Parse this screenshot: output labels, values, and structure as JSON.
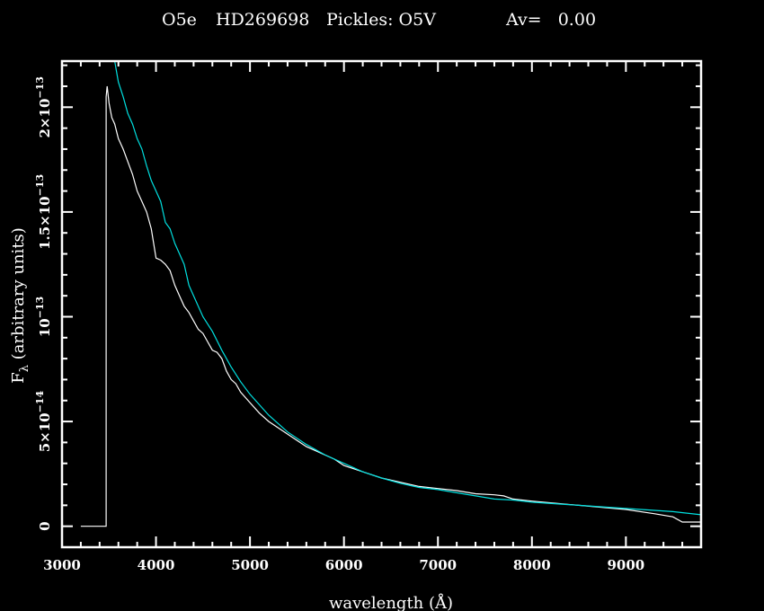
{
  "chart_data": {
    "type": "line",
    "title_parts": [
      {
        "key": "spectral_type",
        "text": "O5e"
      },
      {
        "key": "star",
        "text": "HD269698"
      },
      {
        "key": "pickles",
        "text": "Pickles: O5V"
      },
      {
        "key": "av",
        "text": "Av=   0.00"
      }
    ],
    "xlabel": "wavelength (Å)",
    "ylabel": {
      "symbol": "F",
      "subscript": "λ",
      "rest": " (arbitrary units)"
    },
    "xlim": [
      3000,
      9800
    ],
    "ylim": [
      -1e-14,
      2.22e-13
    ],
    "x_ticks": [
      {
        "value": 3000,
        "label": "3000"
      },
      {
        "value": 4000,
        "label": "4000"
      },
      {
        "value": 5000,
        "label": "5000"
      },
      {
        "value": 6000,
        "label": "6000"
      },
      {
        "value": 7000,
        "label": "7000"
      },
      {
        "value": 8000,
        "label": "8000"
      },
      {
        "value": 9000,
        "label": "9000"
      }
    ],
    "x_minor_step": 200,
    "y_ticks": [
      {
        "value": 0,
        "mant": "0",
        "exp": ""
      },
      {
        "value": 5e-14,
        "mant": "5×10",
        "exp": "−14"
      },
      {
        "value": 1e-13,
        "mant": "10",
        "exp": "−13"
      },
      {
        "value": 1.5e-13,
        "mant": "1.5×10",
        "exp": "−13"
      },
      {
        "value": 2e-13,
        "mant": "2×10",
        "exp": "−13"
      }
    ],
    "y_minor_step": 1e-14,
    "grid": false,
    "series": [
      {
        "color": "#ffffff",
        "x": [
          3200,
          3470,
          3470,
          3480,
          3500,
          3530,
          3560,
          3600,
          3650,
          3700,
          3750,
          3800,
          3850,
          3900,
          3950,
          4000,
          4050,
          4100,
          4150,
          4200,
          4250,
          4300,
          4350,
          4400,
          4450,
          4500,
          4550,
          4600,
          4650,
          4700,
          4750,
          4800,
          4850,
          4900,
          5000,
          5100,
          5200,
          5300,
          5400,
          5500,
          5600,
          5700,
          5800,
          5900,
          6000,
          6200,
          6400,
          6600,
          6800,
          7000,
          7200,
          7400,
          7600,
          7700,
          7800,
          8000,
          8500,
          9000,
          9300,
          9500,
          9600,
          9800
        ],
        "y": [
          0,
          0,
          2.05e-13,
          2.1e-13,
          2.02e-13,
          1.95e-13,
          1.92e-13,
          1.85e-13,
          1.8e-13,
          1.74e-13,
          1.68e-13,
          1.6e-13,
          1.55e-13,
          1.5e-13,
          1.42e-13,
          1.28e-13,
          1.27e-13,
          1.25e-13,
          1.22e-13,
          1.15e-13,
          1.1e-13,
          1.05e-13,
          1.02e-13,
          9.8e-14,
          9.4e-14,
          9.2e-14,
          8.8e-14,
          8.4e-14,
          8.3e-14,
          8e-14,
          7.4e-14,
          7e-14,
          6.8e-14,
          6.4e-14,
          5.9e-14,
          5.4e-14,
          5e-14,
          4.7e-14,
          4.4e-14,
          4.1e-14,
          3.8e-14,
          3.6e-14,
          3.4e-14,
          3.2e-14,
          2.9e-14,
          2.6e-14,
          2.3e-14,
          2.1e-14,
          1.9e-14,
          1.8e-14,
          1.7e-14,
          1.55e-14,
          1.5e-14,
          1.45e-14,
          1.3e-14,
          1.2e-14,
          1e-14,
          8e-15,
          6e-15,
          4.5e-15,
          2e-15,
          2e-15
        ]
      },
      {
        "color": "#00e0e0",
        "x": [
          3560,
          3600,
          3650,
          3700,
          3750,
          3800,
          3850,
          3900,
          3950,
          4000,
          4050,
          4100,
          4150,
          4200,
          4250,
          4300,
          4350,
          4400,
          4500,
          4600,
          4700,
          4800,
          4900,
          5000,
          5200,
          5400,
          5600,
          5800,
          6000,
          6200,
          6400,
          6600,
          6800,
          7000,
          7200,
          7400,
          7600,
          7800,
          8000,
          8500,
          9000,
          9500,
          9800
        ],
        "y": [
          2.22e-13,
          2.12e-13,
          2.05e-13,
          1.97e-13,
          1.92e-13,
          1.85e-13,
          1.8e-13,
          1.72e-13,
          1.65e-13,
          1.6e-13,
          1.55e-13,
          1.45e-13,
          1.42e-13,
          1.35e-13,
          1.3e-13,
          1.25e-13,
          1.15e-13,
          1.1e-13,
          1e-13,
          9.3e-14,
          8.4e-14,
          7.6e-14,
          6.9e-14,
          6.3e-14,
          5.3e-14,
          4.5e-14,
          3.9e-14,
          3.4e-14,
          3e-14,
          2.6e-14,
          2.3e-14,
          2.05e-14,
          1.85e-14,
          1.75e-14,
          1.6e-14,
          1.45e-14,
          1.3e-14,
          1.25e-14,
          1.15e-14,
          1e-14,
          8.5e-15,
          7e-15,
          5.5e-15
        ]
      }
    ]
  }
}
